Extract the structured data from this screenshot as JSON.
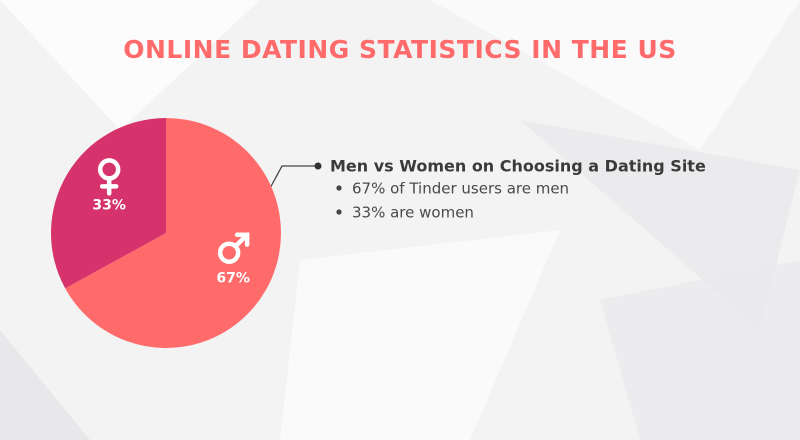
{
  "chart_data": {
    "type": "pie",
    "title": "ONLINE DATING STATISTICS IN THE US",
    "values": [
      67,
      33
    ],
    "value_labels": [
      "67%",
      "33%"
    ],
    "colors": [
      "#ff6b6b",
      "#d6336c"
    ],
    "annotation": {
      "heading": "Men vs Women on Choosing a Dating Site",
      "bullets": [
        "67% of Tinder users are men",
        "33% are women"
      ]
    }
  }
}
